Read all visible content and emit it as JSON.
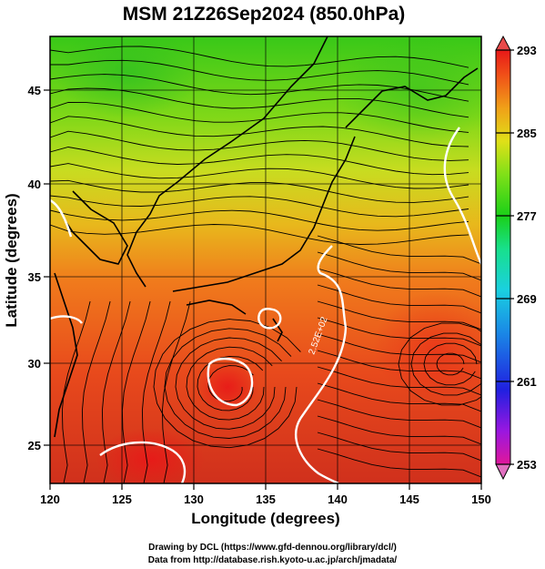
{
  "title": "MSM 21Z26Sep2024 (850.0hPa)",
  "xlabel": "Longitude (degrees)",
  "ylabel": "Latitude  (degrees)",
  "credits": [
    "Drawing by DCL (https://www.gfd-dennou.org/library/dcl/)",
    "Data from http://database.rish.kyoto-u.ac.jp/arch/jmadata/"
  ],
  "map": {
    "lon_range": [
      120,
      150
    ],
    "lat_range": [
      22.4,
      47.6
    ],
    "x_ticks": [
      "120",
      "125",
      "130",
      "135",
      "140",
      "145",
      "150"
    ],
    "y_ticks": [
      "25",
      "30",
      "35",
      "40",
      "45"
    ],
    "field": "temperature (K) with streamlines",
    "contour_label": "2.52E+02"
  },
  "colorbar": {
    "min": 253,
    "max": 293,
    "tick_labels": [
      "293",
      "285",
      "277",
      "269",
      "261",
      "253"
    ],
    "colors": [
      "#e0179a",
      "#9a17e0",
      "#2020e0",
      "#1a8ae6",
      "#1ad0e0",
      "#18e08c",
      "#1ad018",
      "#80e018",
      "#e0e018",
      "#f0a018",
      "#f05018",
      "#e81818"
    ]
  }
}
